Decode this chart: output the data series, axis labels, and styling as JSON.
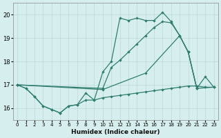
{
  "xlabel": "Humidex (Indice chaleur)",
  "xlim": [
    -0.5,
    23.5
  ],
  "ylim": [
    15.5,
    20.5
  ],
  "xticks": [
    0,
    1,
    2,
    3,
    4,
    5,
    6,
    7,
    8,
    9,
    10,
    11,
    12,
    13,
    14,
    15,
    16,
    17,
    18,
    19,
    20,
    21,
    22,
    23
  ],
  "yticks": [
    16,
    17,
    18,
    19,
    20
  ],
  "bg_color": "#d6eeee",
  "line_color": "#2e7d6e",
  "grid_color": "#bcd8d8",
  "curves": [
    {
      "x": [
        0,
        1,
        2,
        3,
        4,
        5,
        6,
        7,
        8,
        9,
        10,
        11,
        12,
        13,
        14,
        15,
        16,
        17,
        18,
        19,
        20,
        21
      ],
      "y": [
        17.0,
        16.85,
        16.5,
        16.1,
        15.95,
        15.8,
        16.1,
        16.15,
        16.65,
        16.35,
        17.55,
        18.0,
        19.85,
        19.75,
        19.85,
        19.75,
        19.75,
        20.1,
        19.7,
        19.1,
        18.4,
        16.85
      ]
    },
    {
      "x": [
        0,
        10,
        11,
        12,
        13,
        14,
        15,
        16,
        17,
        18,
        19,
        20,
        21,
        23
      ],
      "y": [
        17.0,
        16.85,
        17.75,
        18.05,
        18.4,
        18.75,
        19.1,
        19.45,
        19.7,
        19.65,
        19.1,
        18.4,
        16.85,
        16.9
      ]
    },
    {
      "x": [
        0,
        10,
        15,
        19,
        20,
        21,
        22,
        23
      ],
      "y": [
        17.0,
        16.8,
        17.5,
        19.1,
        18.4,
        16.85,
        17.35,
        16.9
      ]
    },
    {
      "x": [
        0,
        1,
        2,
        3,
        4,
        5,
        6,
        7,
        8,
        9,
        10,
        11,
        12,
        13,
        14,
        15,
        16,
        17,
        18,
        19,
        20,
        21,
        22,
        23
      ],
      "y": [
        17.0,
        16.85,
        16.5,
        16.1,
        15.95,
        15.8,
        16.1,
        16.15,
        16.35,
        16.35,
        16.45,
        16.5,
        16.55,
        16.6,
        16.65,
        16.7,
        16.75,
        16.8,
        16.85,
        16.9,
        16.95,
        16.95,
        16.9,
        16.9
      ]
    }
  ]
}
